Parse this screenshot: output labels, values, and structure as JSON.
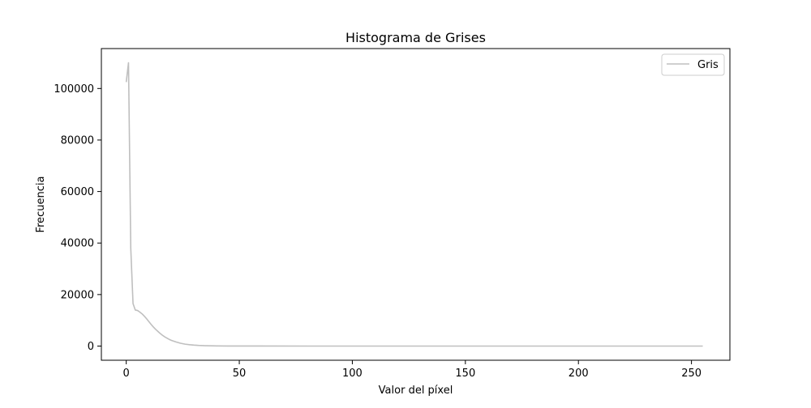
{
  "chart_data": {
    "type": "line",
    "title": "Histograma de Grises",
    "xlabel": "Valor del píxel",
    "ylabel": "Frecuencia",
    "xlim": [
      -11,
      267
    ],
    "ylim": [
      -5500,
      115500
    ],
    "xticks": [
      0,
      50,
      100,
      150,
      200,
      250
    ],
    "yticks": [
      0,
      20000,
      40000,
      60000,
      80000,
      100000
    ],
    "grid": false,
    "legend_position": "top-right",
    "series": [
      {
        "name": "Gris",
        "color": "#bfbfbf",
        "x": [
          0,
          1,
          2,
          3,
          4,
          5,
          6,
          7,
          8,
          9,
          10,
          11,
          12,
          13,
          14,
          15,
          16,
          17,
          18,
          19,
          20,
          22,
          24,
          26,
          28,
          30,
          32,
          35,
          38,
          40,
          45,
          50,
          60,
          80,
          100,
          150,
          200,
          255
        ],
        "y": [
          102500,
          110000,
          38000,
          16500,
          14000,
          13800,
          13200,
          12500,
          11600,
          10600,
          9500,
          8400,
          7400,
          6500,
          5700,
          4900,
          4200,
          3600,
          3100,
          2600,
          2200,
          1600,
          1100,
          750,
          520,
          360,
          250,
          150,
          90,
          60,
          30,
          15,
          6,
          2,
          1,
          0,
          0,
          0
        ]
      }
    ]
  }
}
